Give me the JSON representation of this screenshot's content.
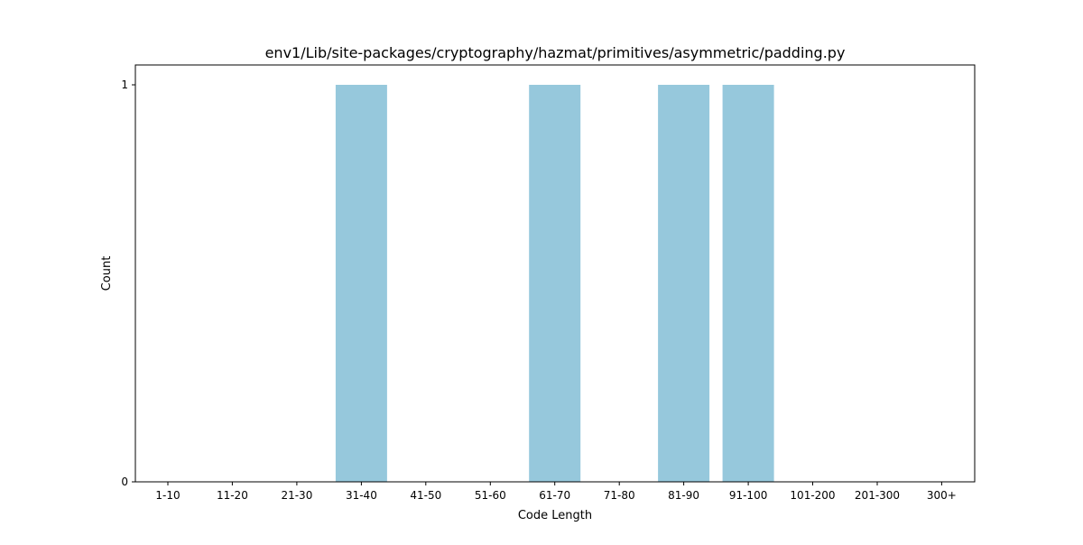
{
  "chart_data": {
    "type": "bar",
    "title": "env1/Lib/site-packages/cryptography/hazmat/primitives/asymmetric/padding.py",
    "xlabel": "Code Length",
    "ylabel": "Count",
    "categories": [
      "1-10",
      "11-20",
      "21-30",
      "31-40",
      "41-50",
      "51-60",
      "61-70",
      "71-80",
      "81-90",
      "91-100",
      "101-200",
      "201-300",
      "300+"
    ],
    "values": [
      0,
      0,
      0,
      1,
      0,
      0,
      1,
      0,
      1,
      1,
      0,
      0,
      0
    ],
    "yticks": [
      0,
      1
    ],
    "ylim": [
      0,
      1.05
    ],
    "bar_color": "#96c8dc",
    "grid": false,
    "legend": "none"
  }
}
